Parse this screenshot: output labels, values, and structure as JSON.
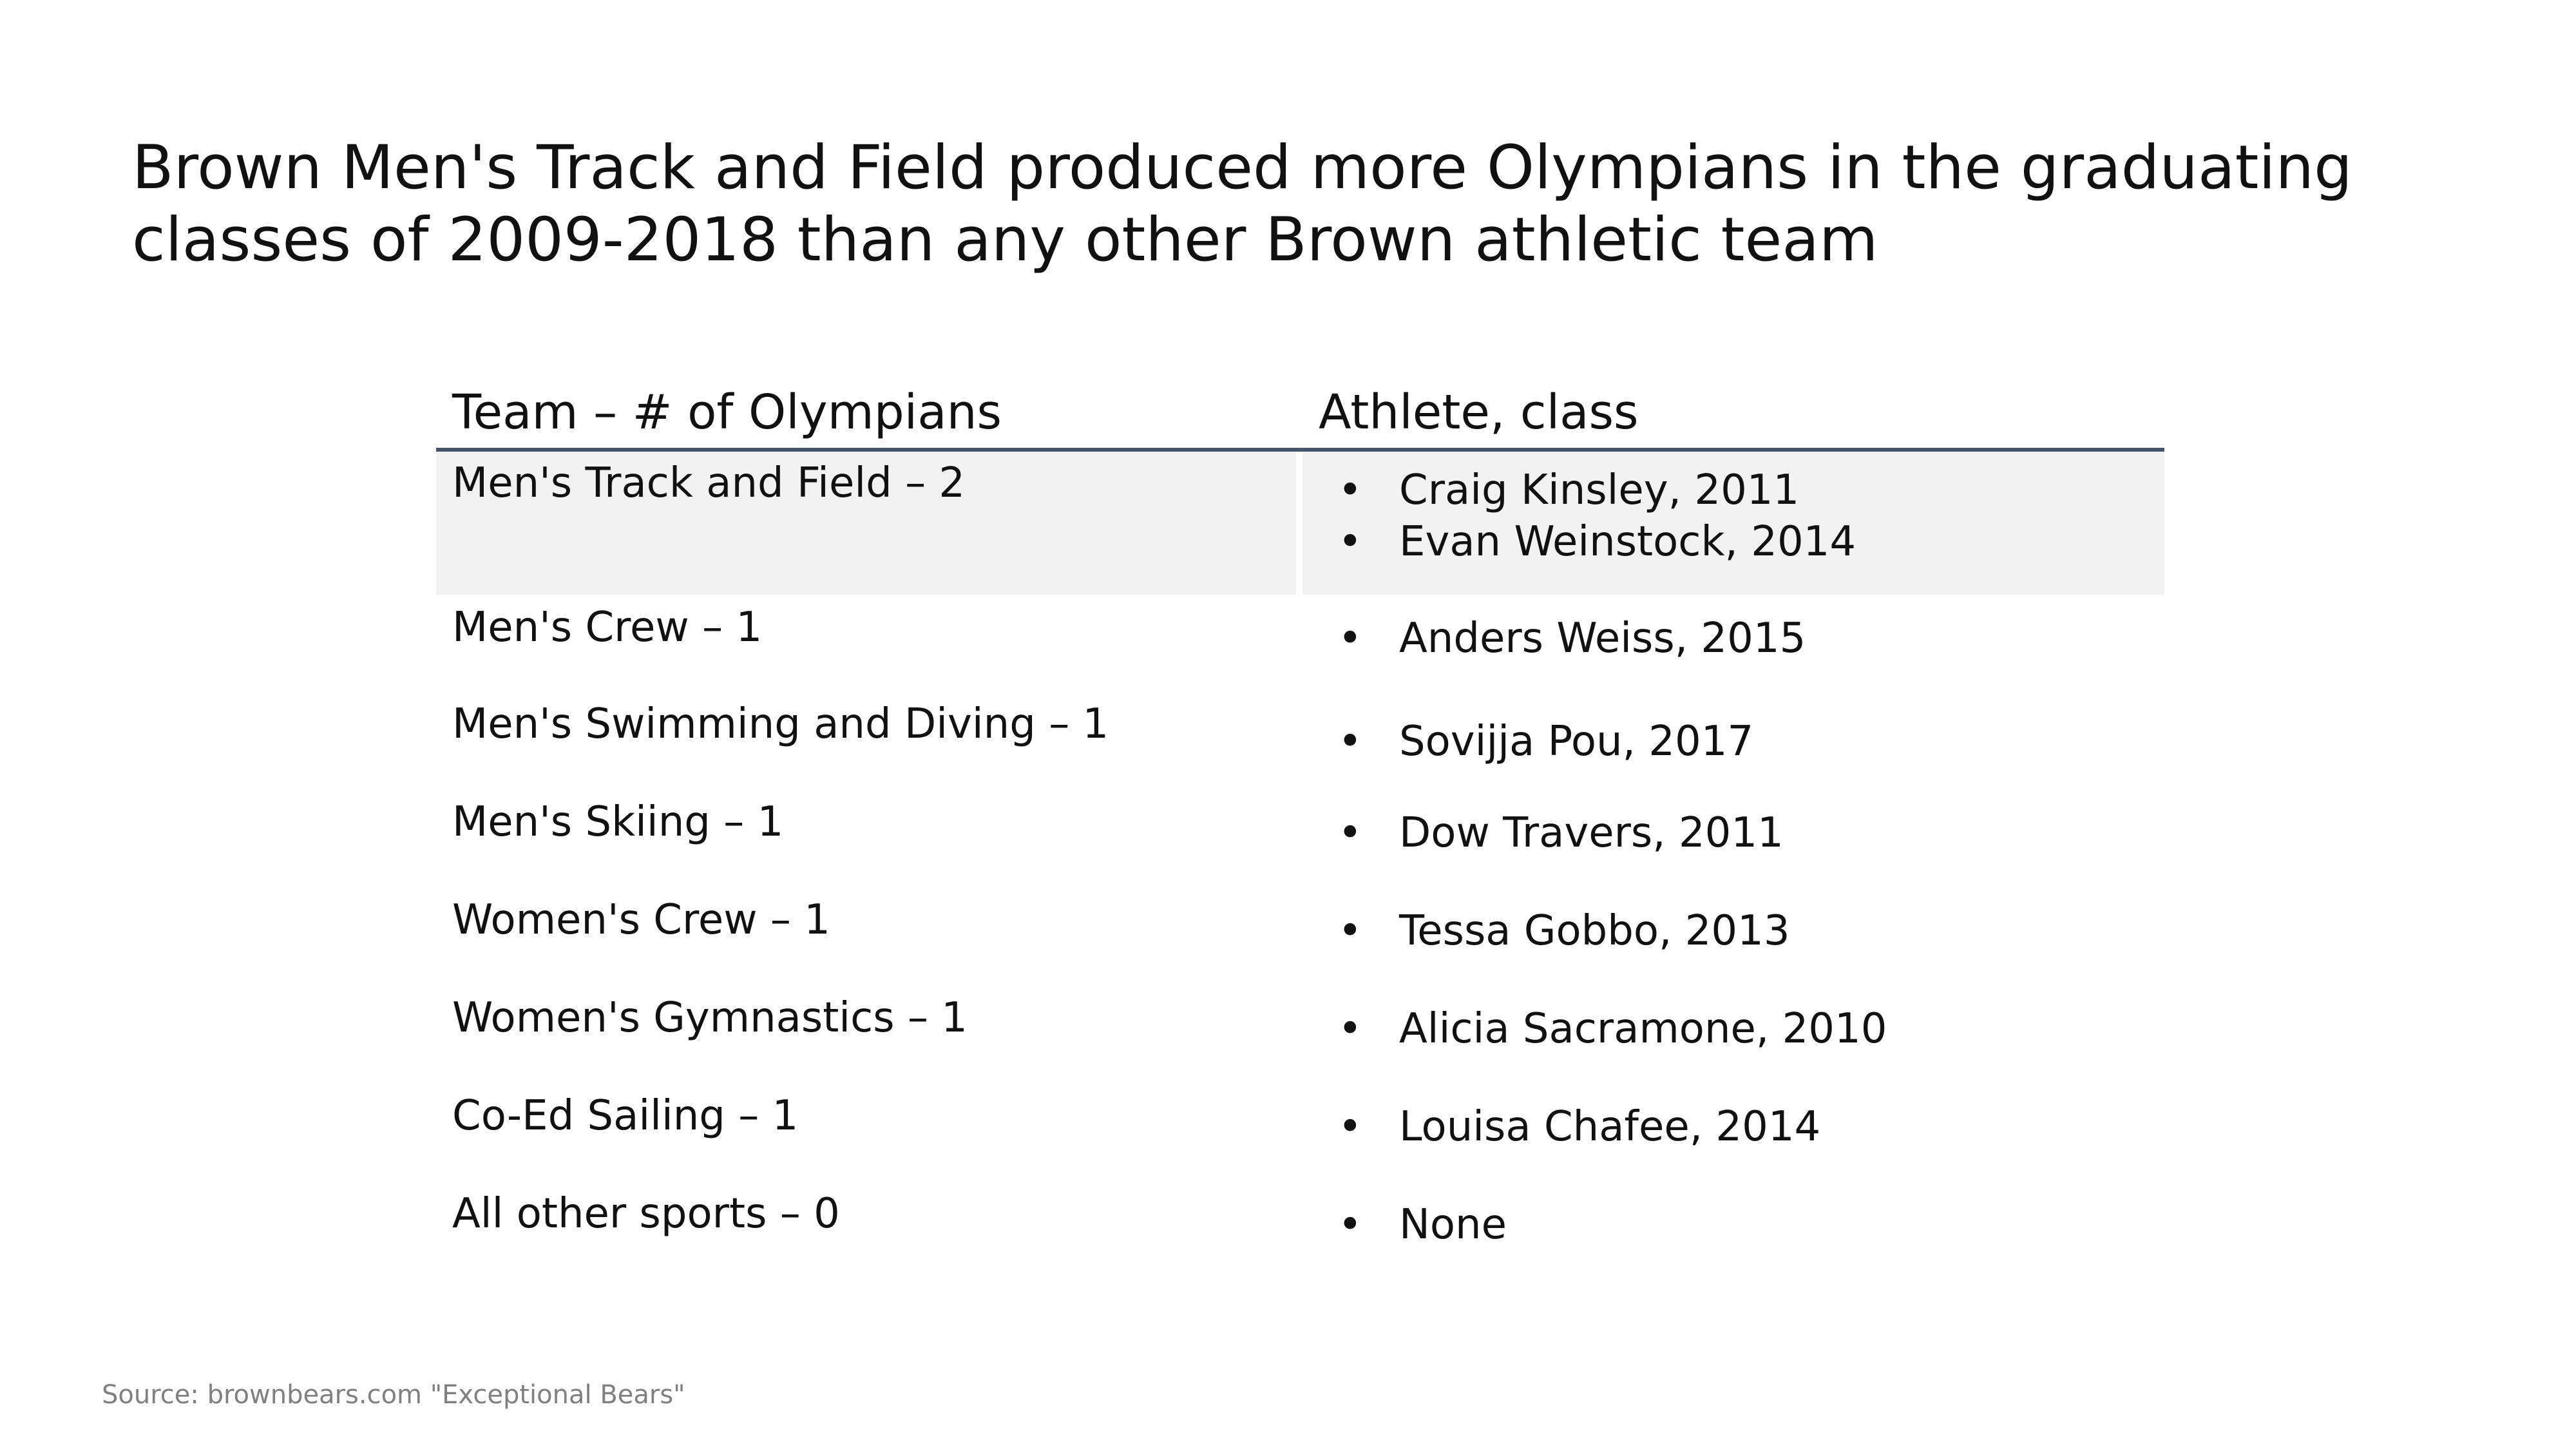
{
  "slide": {
    "title_line1": "Brown Men's Track and Field produced more Olympians in the graduating",
    "title_line2": "classes of 2009-2018 than any other Brown athletic team",
    "source": "Source: brownbears.com \"Exceptional Bears\""
  },
  "table": {
    "headers": {
      "team": "Team – # of Olympians",
      "athlete": "Athlete, class"
    },
    "bullet": "•",
    "rows": [
      {
        "team": "Men's Track and Field – 2",
        "athletes": [
          "Craig Kinsley, 2011",
          "Evan Weinstock, 2014"
        ]
      },
      {
        "team": "Men's Crew – 1",
        "athletes": [
          "Anders Weiss, 2015"
        ]
      },
      {
        "team": "Men's Swimming and Diving – 1",
        "athletes": [
          "Sovijja Pou, 2017"
        ]
      },
      {
        "team": "Men's Skiing – 1",
        "athletes": [
          "Dow Travers, 2011"
        ]
      },
      {
        "team": "Women's Crew – 1",
        "athletes": [
          "Tessa Gobbo, 2013"
        ]
      },
      {
        "team": "Women's Gymnastics – 1",
        "athletes": [
          "Alicia Sacramone, 2010"
        ]
      },
      {
        "team": "Co-Ed Sailing – 1",
        "athletes": [
          "Louisa Chafee, 2014"
        ]
      },
      {
        "team": "All other sports – 0",
        "athletes": [
          "None"
        ]
      }
    ]
  },
  "colors": {
    "header_rule": "#44546a",
    "shaded_row": "#f2f2f2",
    "source_text": "#808080"
  }
}
